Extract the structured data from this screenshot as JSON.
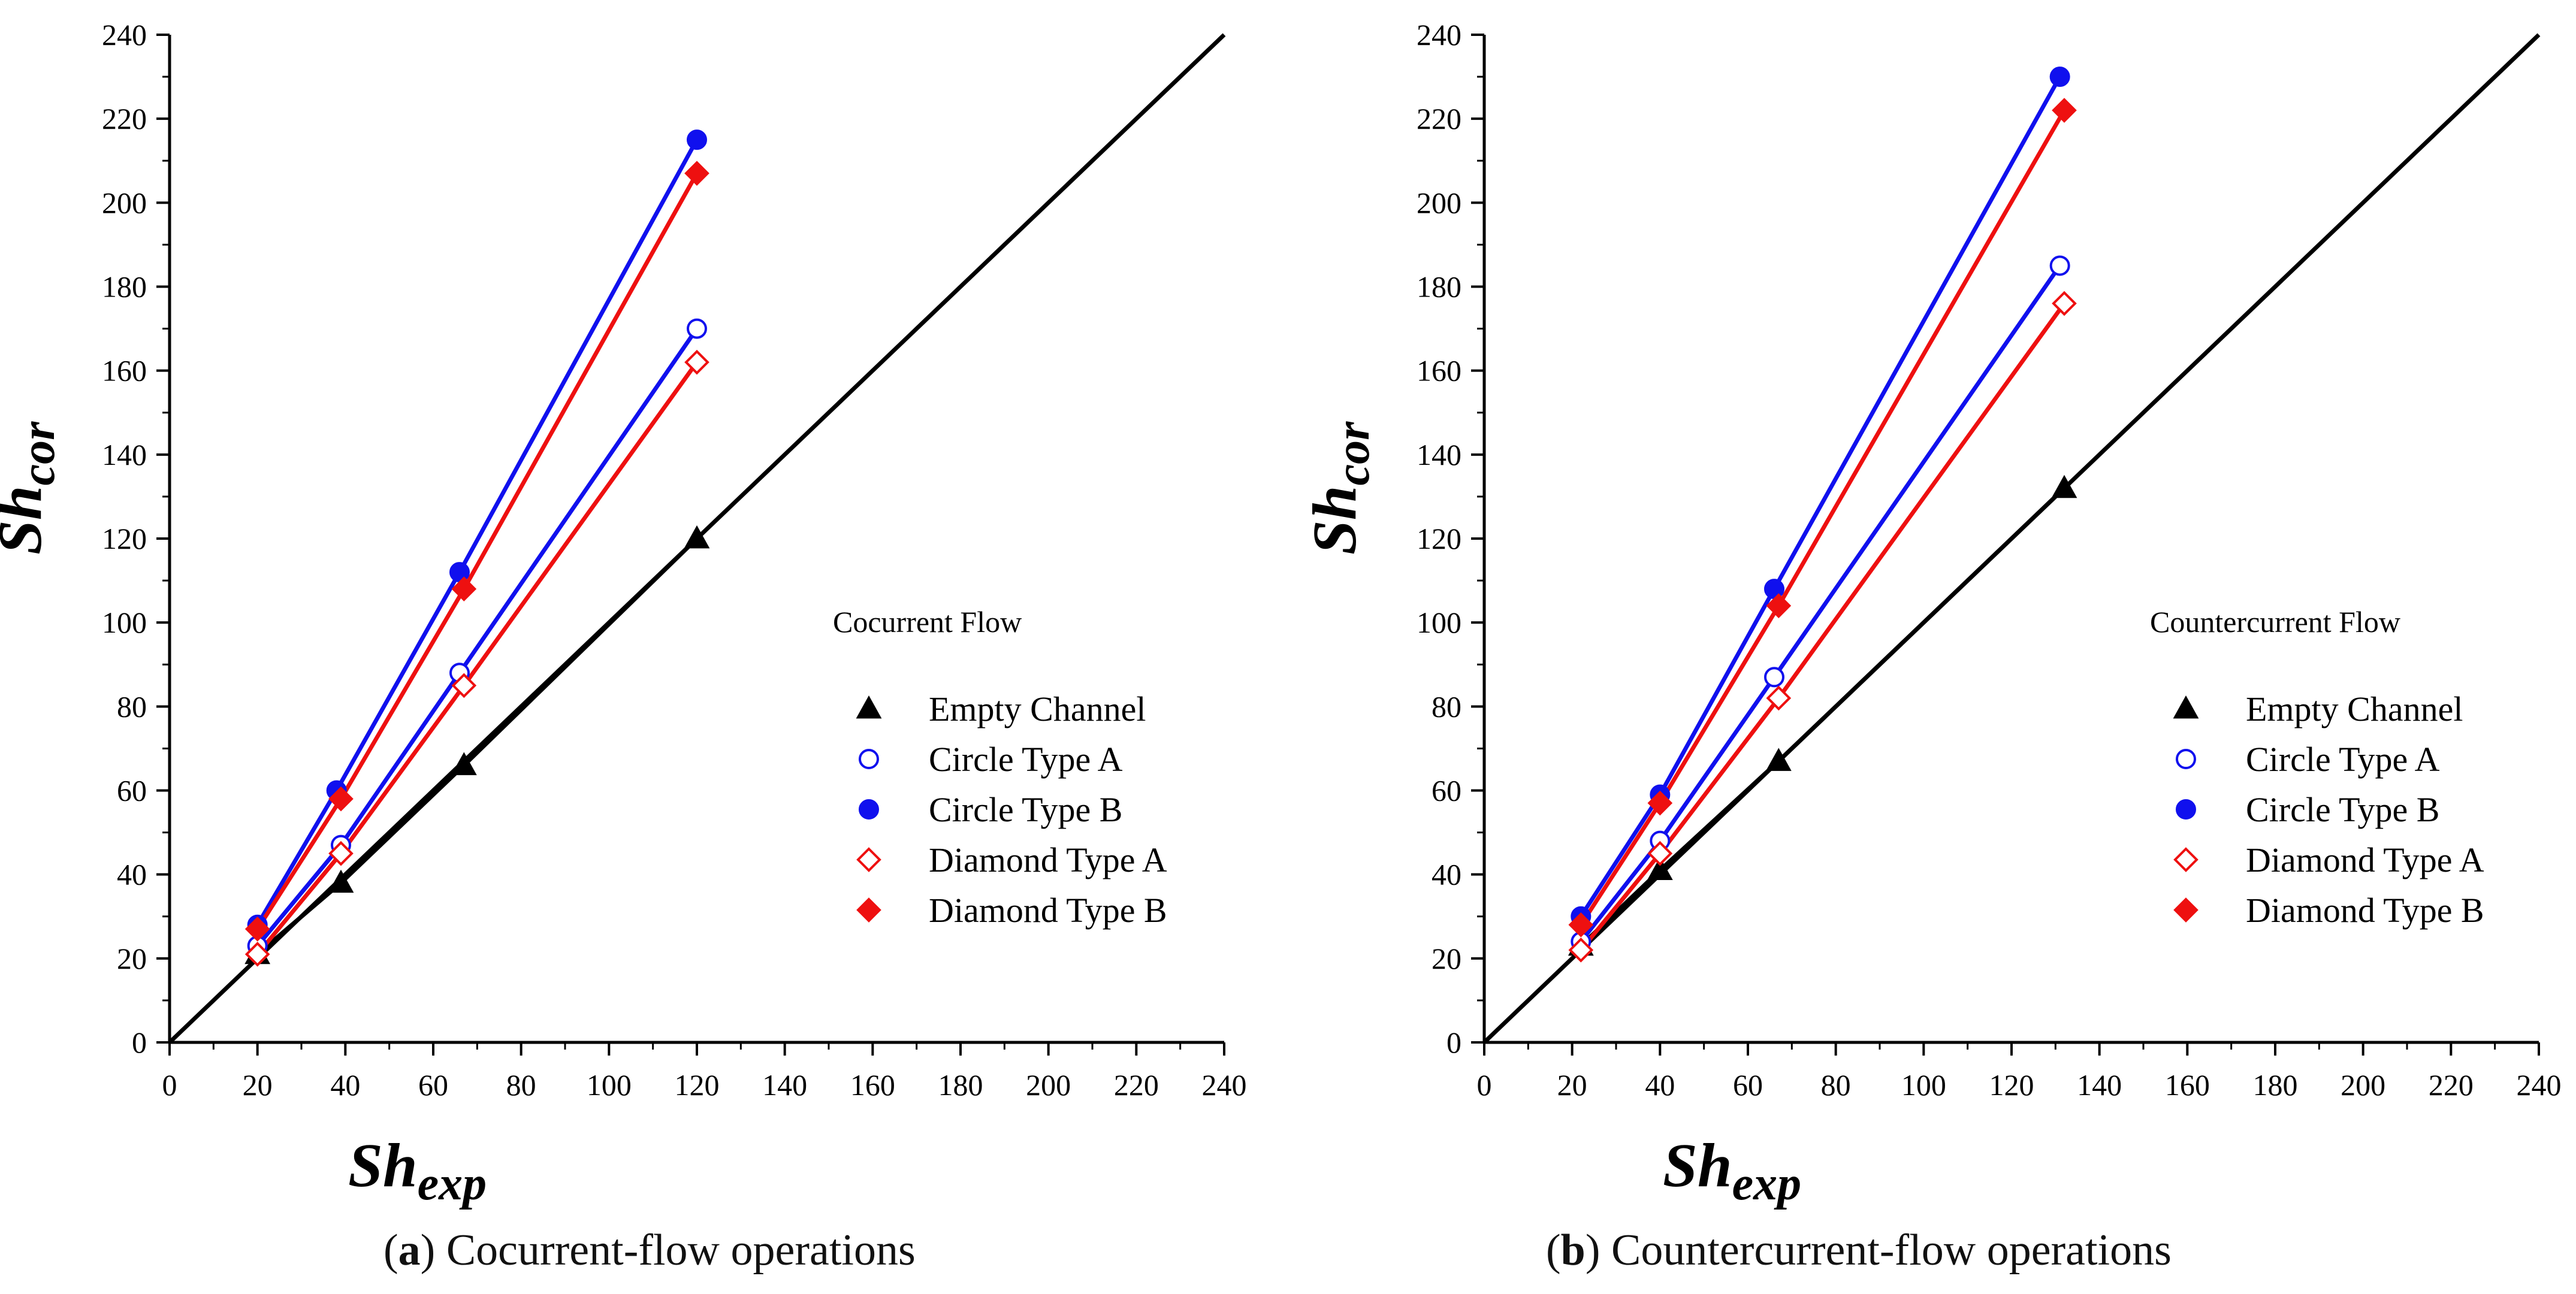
{
  "chart_data": [
    {
      "type": "scatter",
      "panel_label": "a",
      "caption": "Cocurrent-flow operations",
      "xlabel": "Sh",
      "xlabel_sub": "exp",
      "ylabel": "Sh",
      "ylabel_sub": "cor",
      "xlim": [
        0,
        240
      ],
      "ylim": [
        0,
        240
      ],
      "ticks": [
        "0",
        "20",
        "40",
        "60",
        "80",
        "100",
        "120",
        "140",
        "160",
        "180",
        "200",
        "220",
        "240"
      ],
      "diagonal": true,
      "legend_title": "Cocurrent Flow",
      "legend_position": "right",
      "series": [
        {
          "name": "Empty Channel",
          "color": "#000000",
          "marker": "triangle",
          "filled": true,
          "x": [
            20,
            39,
            67,
            120
          ],
          "y": [
            21,
            38,
            66,
            120
          ]
        },
        {
          "name": "Circle Type A",
          "color": "#1010ee",
          "marker": "circle",
          "filled": false,
          "x": [
            20,
            39,
            66,
            120
          ],
          "y": [
            23,
            47,
            88,
            170
          ]
        },
        {
          "name": "Circle Type B",
          "color": "#1010ee",
          "marker": "circle",
          "filled": true,
          "x": [
            20,
            38,
            66,
            120
          ],
          "y": [
            28,
            60,
            112,
            215
          ]
        },
        {
          "name": "Diamond Type A",
          "color": "#ee1010",
          "marker": "diamond",
          "filled": false,
          "x": [
            20,
            39,
            67,
            120
          ],
          "y": [
            21,
            45,
            85,
            162
          ]
        },
        {
          "name": "Diamond Type B",
          "color": "#ee1010",
          "marker": "diamond",
          "filled": true,
          "x": [
            20,
            39,
            67,
            120
          ],
          "y": [
            27,
            58,
            108,
            207
          ]
        }
      ]
    },
    {
      "type": "scatter",
      "panel_label": "b",
      "caption": "Countercurrent-flow operations",
      "xlabel": "Sh",
      "xlabel_sub": "exp",
      "ylabel": "Sh",
      "ylabel_sub": "cor",
      "xlim": [
        0,
        240
      ],
      "ylim": [
        0,
        240
      ],
      "ticks": [
        "0",
        "20",
        "40",
        "60",
        "80",
        "100",
        "120",
        "140",
        "160",
        "180",
        "200",
        "220",
        "240"
      ],
      "diagonal": true,
      "legend_title": "Countercurrent Flow",
      "legend_position": "right",
      "series": [
        {
          "name": "Empty Channel",
          "color": "#000000",
          "marker": "triangle",
          "filled": true,
          "x": [
            22,
            40,
            67,
            132
          ],
          "y": [
            23,
            41,
            67,
            132
          ]
        },
        {
          "name": "Circle Type A",
          "color": "#1010ee",
          "marker": "circle",
          "filled": false,
          "x": [
            22,
            40,
            66,
            131
          ],
          "y": [
            24,
            48,
            87,
            185
          ]
        },
        {
          "name": "Circle Type B",
          "color": "#1010ee",
          "marker": "circle",
          "filled": true,
          "x": [
            22,
            40,
            66,
            131
          ],
          "y": [
            30,
            59,
            108,
            230
          ]
        },
        {
          "name": "Diamond Type A",
          "color": "#ee1010",
          "marker": "diamond",
          "filled": false,
          "x": [
            22,
            40,
            67,
            132
          ],
          "y": [
            22,
            45,
            82,
            176
          ]
        },
        {
          "name": "Diamond Type B",
          "color": "#ee1010",
          "marker": "diamond",
          "filled": true,
          "x": [
            22,
            40,
            67,
            132
          ],
          "y": [
            28,
            57,
            104,
            222
          ]
        }
      ]
    }
  ]
}
